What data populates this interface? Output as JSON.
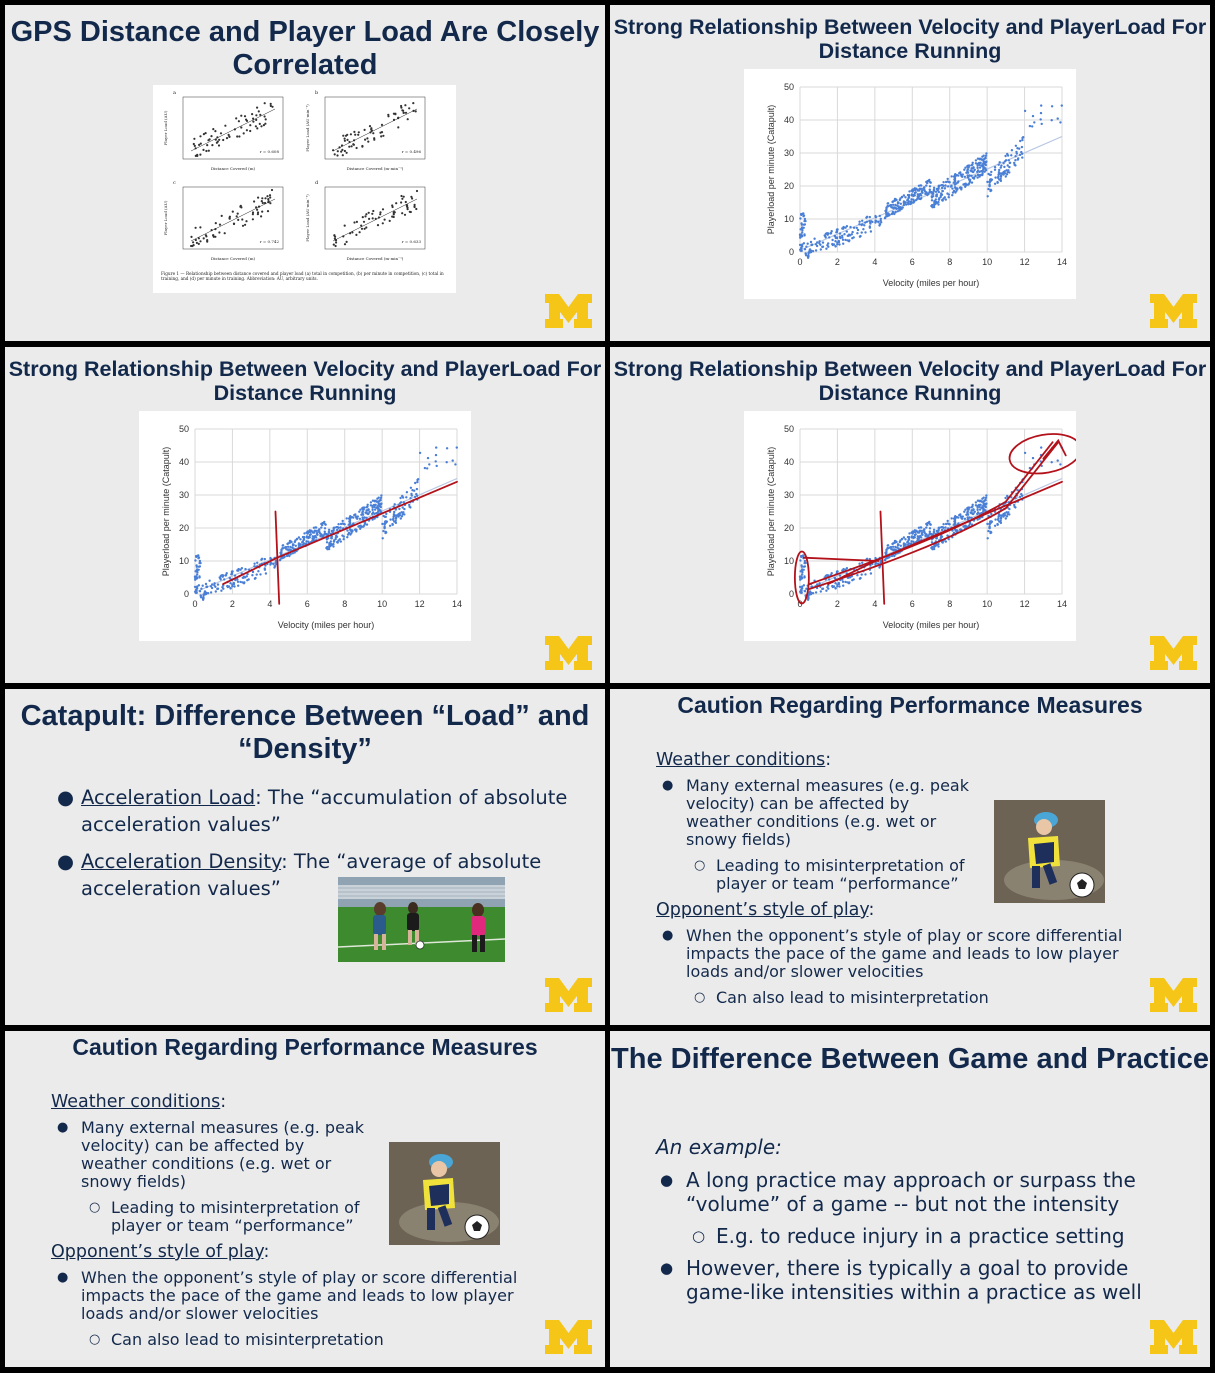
{
  "colors": {
    "navy": "#13294b",
    "maize": "#f5c518",
    "slide_bg": "#ebebeb",
    "annotation": "#b3121b",
    "dots": "#4a7fd6"
  },
  "slide1": {
    "title": "GPS Distance and Player Load Are Closely Correlated",
    "panels": [
      {
        "letter": "a",
        "r": "r = 0.608",
        "xlabel": "Distance Covered (m)",
        "ylabel": "Player Load (AU)"
      },
      {
        "letter": "b",
        "r": "r = 0.496",
        "xlabel": "Distance Covered (m·min⁻¹)",
        "ylabel": "Player Load (AU·min⁻¹)"
      },
      {
        "letter": "c",
        "r": "r = 0.742",
        "xlabel": "Distance Covered (m)",
        "ylabel": "Player Load (AU)"
      },
      {
        "letter": "d",
        "r": "r = 0.633",
        "xlabel": "Distance Covered (m·min⁻¹)",
        "ylabel": "Player Load (AU·min⁻¹)"
      }
    ],
    "caption": "Figure 1 — Relationship between distance covered and player load (a) total in competition, (b) per minute in competition, (c) total in training, and (d) per minute in training. Abbreviation: AU, arbitrary units."
  },
  "velocity_title": "Strong Relationship Between Velocity and PlayerLoad For Distance Running",
  "chart_data": {
    "type": "scatter",
    "xlabel": "Velocity (miles per hour)",
    "ylabel": "Playerload per minute (Catapult)",
    "xlim": [
      0,
      14
    ],
    "ylim": [
      0,
      50
    ],
    "xticks": [
      "0",
      "2",
      "4",
      "6",
      "8",
      "10",
      "12",
      "14"
    ],
    "yticks": [
      "0",
      "10",
      "20",
      "30",
      "40",
      "50"
    ],
    "grid": true,
    "trendline": {
      "x": [
        0,
        14
      ],
      "y": [
        0.5,
        35
      ]
    },
    "clusters": [
      {
        "x": [
          0,
          0.3
        ],
        "y": [
          0,
          12
        ],
        "n": 40
      },
      {
        "x": [
          0.3,
          4.4
        ],
        "y": [
          0.5,
          10
        ],
        "n": 140
      },
      {
        "x": [
          4.5,
          7
        ],
        "y": [
          12,
          20
        ],
        "n": 160
      },
      {
        "x": [
          7,
          10
        ],
        "y": [
          16,
          27
        ],
        "n": 220
      },
      {
        "x": [
          10,
          12
        ],
        "y": [
          20,
          32
        ],
        "n": 90
      },
      {
        "x": [
          12,
          14
        ],
        "y": [
          38,
          45
        ],
        "n": 14
      }
    ]
  },
  "slide5": {
    "title": "Catapult: Difference Between “Load” and “Density”",
    "bullets": [
      {
        "term": "Acceleration Load",
        "text": ": The “accumulation of absolute acceleration values”"
      },
      {
        "term": "Acceleration Density",
        "text": ": The “average of absolute acceleration values”"
      }
    ]
  },
  "caution": {
    "title": "Caution Regarding Performance Measures",
    "weather_heading": "Weather conditions",
    "weather_bullet": "Many external measures (e.g. peak velocity) can be affected by weather conditions (e.g. wet or snowy fields)",
    "weather_sub": "Leading to misinterpretation of player or team “performance”",
    "opponent_heading": "Opponent’s style of play",
    "opponent_bullet": "When the opponent’s style of play or score differential impacts the pace of the game and leads to low player loads and/or slower velocities",
    "opponent_sub": "Can also lead to misinterpretation"
  },
  "slide8": {
    "title": "The Difference Between Game and Practice",
    "example": "An example:",
    "bullet1": "A long practice may approach or surpass the “volume” of a game -- but not the intensity",
    "sub1": "E.g. to reduce injury in a practice setting",
    "bullet2": "However, there is typically a goal to provide game-like intensities within a practice as well"
  }
}
